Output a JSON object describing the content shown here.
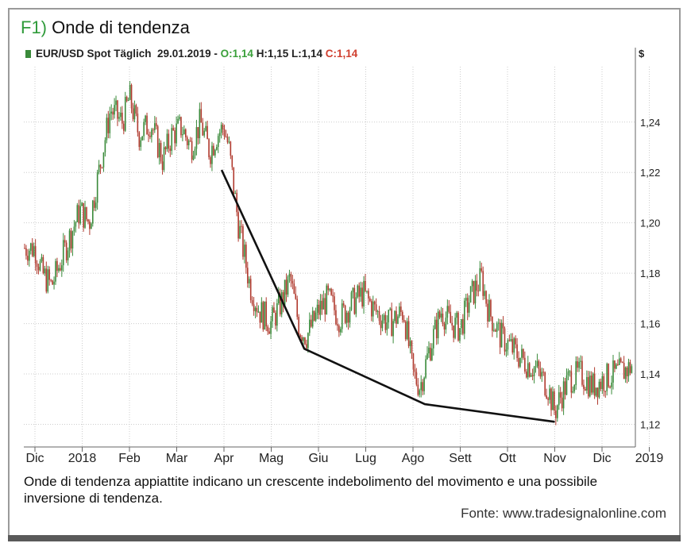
{
  "header": {
    "title_number": "F1)",
    "title_text": "Onde di tendenza"
  },
  "legend": {
    "instrument": "EUR/USD Spot Täglich",
    "date": "29.01.2019",
    "separator": "-",
    "open": "O:1,14",
    "high": "H:1,15",
    "low": "L:1,14",
    "close": "C:1,14"
  },
  "currency_label": "$",
  "caption": "Onde di tendenza appiattite indicano un crescente indebolimento del movimento e una possibile inversione di tendenza.",
  "source": "Fonte: www.tradesignalonline.com",
  "colors": {
    "up": "#3a8a3a",
    "down": "#b03a2e",
    "trendline": "#111111",
    "grid": "#cccccc"
  },
  "chart_data": {
    "type": "line",
    "x_tick_labels": [
      "Dic",
      "2018",
      "Feb",
      "Mar",
      "Apr",
      "Mag",
      "Giu",
      "Lug",
      "Ago",
      "Sett",
      "Ott",
      "Nov",
      "Dic",
      "2019"
    ],
    "y_tick_labels": [
      "1,24",
      "1,22",
      "1,20",
      "1,18",
      "1,16",
      "1,14",
      "1,12"
    ],
    "y_ticks": [
      1.24,
      1.22,
      1.2,
      1.18,
      1.16,
      1.14,
      1.12
    ],
    "ylim": [
      1.111,
      1.262
    ],
    "grid": true,
    "price_path": {
      "months": [
        0,
        0.15,
        0.35,
        0.55,
        0.75,
        0.95,
        1.15,
        1.4,
        1.6,
        1.85,
        2.0,
        2.2,
        2.45,
        2.7,
        2.9,
        3.1,
        3.3,
        3.5,
        3.7,
        3.85,
        4.0,
        4.1,
        4.3,
        4.55,
        4.75,
        5.0,
        5.25,
        5.4,
        5.6,
        5.75,
        6.0,
        6.2,
        6.45,
        6.7,
        6.95,
        7.2,
        7.5,
        7.8,
        8.0,
        8.15,
        8.35,
        8.6,
        8.8,
        9.0,
        9.2,
        9.45,
        9.6,
        9.85,
        10.1,
        10.35,
        10.6,
        10.85,
        11.0,
        11.1,
        11.3,
        11.55,
        11.8,
        12.05,
        12.3,
        12.55,
        12.75,
        13.0,
        13.15,
        13.4,
        13.65
      ],
      "close": [
        1.19,
        1.18,
        1.175,
        1.185,
        1.195,
        1.205,
        1.2,
        1.225,
        1.245,
        1.24,
        1.25,
        1.235,
        1.24,
        1.225,
        1.235,
        1.238,
        1.23,
        1.24,
        1.228,
        1.235,
        1.238,
        1.23,
        1.2,
        1.175,
        1.165,
        1.16,
        1.17,
        1.178,
        1.158,
        1.155,
        1.165,
        1.17,
        1.162,
        1.168,
        1.172,
        1.165,
        1.16,
        1.165,
        1.14,
        1.135,
        1.15,
        1.165,
        1.16,
        1.158,
        1.17,
        1.178,
        1.165,
        1.155,
        1.15,
        1.145,
        1.142,
        1.135,
        1.125,
        1.13,
        1.138,
        1.14,
        1.135,
        1.138,
        1.14,
        1.142,
        1.145,
        1.15,
        1.155,
        1.14,
        1.135
      ]
    },
    "trendline": {
      "months": [
        3.95,
        5.7,
        8.25,
        11.0
      ],
      "values": [
        1.221,
        1.15,
        1.128,
        1.121
      ]
    }
  }
}
